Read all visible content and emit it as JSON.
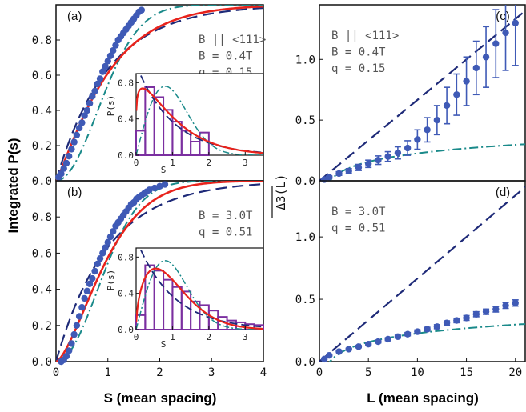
{
  "figure": {
    "xlabel_left": "S (mean spacing)",
    "ylabel_left": "Integrated P(s)",
    "xlabel_right": "L (mean spacing)",
    "ylabel_right": "Δ3(L)",
    "inset_xlabel": "S",
    "inset_ylabel": "P(s)"
  },
  "colors": {
    "data_points": "#3f5ab6",
    "poisson_dashed": "#1e2a78",
    "goe_dashdot": "#1a8a8a",
    "fit_red": "#e8231c",
    "histogram": "#7b2fa0"
  },
  "chart_data": [
    {
      "type": "line",
      "panel": "a",
      "label": "(a)",
      "annotations": [
        "B || <111>",
        "B = 0.4T",
        "q = 0.15"
      ],
      "xlim": [
        0,
        4
      ],
      "ylim": [
        0,
        1.0
      ],
      "xticks": [
        "0",
        "1",
        "2",
        "3",
        "4"
      ],
      "yticks": [
        "0.0",
        "0.2",
        "0.4",
        "0.6",
        "0.8"
      ],
      "points": [
        [
          0.05,
          0.02
        ],
        [
          0.1,
          0.04
        ],
        [
          0.15,
          0.07
        ],
        [
          0.2,
          0.1
        ],
        [
          0.25,
          0.14
        ],
        [
          0.3,
          0.18
        ],
        [
          0.35,
          0.22
        ],
        [
          0.4,
          0.26
        ],
        [
          0.45,
          0.3
        ],
        [
          0.5,
          0.33
        ],
        [
          0.55,
          0.37
        ],
        [
          0.6,
          0.4
        ],
        [
          0.65,
          0.44
        ],
        [
          0.7,
          0.48
        ],
        [
          0.75,
          0.51
        ],
        [
          0.8,
          0.55
        ],
        [
          0.85,
          0.58
        ],
        [
          0.9,
          0.62
        ],
        [
          0.95,
          0.65
        ],
        [
          1.0,
          0.68
        ],
        [
          1.05,
          0.71
        ],
        [
          1.1,
          0.74
        ],
        [
          1.15,
          0.77
        ],
        [
          1.2,
          0.8
        ],
        [
          1.25,
          0.82
        ],
        [
          1.3,
          0.84
        ],
        [
          1.35,
          0.86
        ],
        [
          1.4,
          0.88
        ],
        [
          1.45,
          0.9
        ],
        [
          1.5,
          0.92
        ],
        [
          1.55,
          0.94
        ],
        [
          1.6,
          0.96
        ],
        [
          1.65,
          0.97
        ]
      ],
      "q": 0.15,
      "inset": {
        "xlim": [
          0,
          3.5
        ],
        "ylim": [
          0,
          0.9
        ],
        "xticks": [
          "0",
          "1",
          "2",
          "3"
        ],
        "yticks": [
          "0.0",
          "0.4",
          "0.8"
        ],
        "bin_width": 0.25,
        "bars": [
          0.27,
          0.75,
          0.64,
          0.5,
          0.37,
          0.27,
          0.15,
          0.25
        ]
      }
    },
    {
      "type": "line",
      "panel": "b",
      "label": "(b)",
      "annotations": [
        "B = 3.0T",
        "q = 0.51"
      ],
      "xlim": [
        0,
        4
      ],
      "ylim": [
        0,
        1.0
      ],
      "xticks": [
        "0",
        "1",
        "2",
        "3",
        "4"
      ],
      "yticks": [
        "0.0",
        "0.2",
        "0.4",
        "0.6",
        "0.8"
      ],
      "points": [
        [
          0.1,
          0.0
        ],
        [
          0.15,
          0.01
        ],
        [
          0.2,
          0.03
        ],
        [
          0.25,
          0.06
        ],
        [
          0.3,
          0.1
        ],
        [
          0.35,
          0.15
        ],
        [
          0.4,
          0.2
        ],
        [
          0.45,
          0.25
        ],
        [
          0.5,
          0.3
        ],
        [
          0.55,
          0.35
        ],
        [
          0.6,
          0.39
        ],
        [
          0.65,
          0.43
        ],
        [
          0.7,
          0.46
        ],
        [
          0.75,
          0.5
        ],
        [
          0.8,
          0.54
        ],
        [
          0.85,
          0.57
        ],
        [
          0.9,
          0.6
        ],
        [
          0.95,
          0.63
        ],
        [
          1.0,
          0.66
        ],
        [
          1.05,
          0.69
        ],
        [
          1.1,
          0.72
        ],
        [
          1.15,
          0.75
        ],
        [
          1.2,
          0.77
        ],
        [
          1.25,
          0.79
        ],
        [
          1.3,
          0.81
        ],
        [
          1.35,
          0.83
        ],
        [
          1.4,
          0.85
        ],
        [
          1.45,
          0.87
        ],
        [
          1.5,
          0.88
        ],
        [
          1.55,
          0.9
        ],
        [
          1.6,
          0.91
        ],
        [
          1.65,
          0.92
        ],
        [
          1.7,
          0.93
        ],
        [
          1.75,
          0.94
        ],
        [
          1.8,
          0.95
        ],
        [
          1.9,
          0.96
        ],
        [
          2.0,
          0.97
        ],
        [
          2.1,
          0.98
        ]
      ],
      "q": 0.51,
      "inset": {
        "xlim": [
          0,
          3.5
        ],
        "ylim": [
          0,
          0.9
        ],
        "xticks": [
          "0",
          "1",
          "2",
          "3"
        ],
        "yticks": [
          "0.0",
          "0.4",
          "0.8"
        ],
        "bin_width": 0.25,
        "bars": [
          0.16,
          0.71,
          0.65,
          0.55,
          0.47,
          0.42,
          0.31,
          0.27,
          0.21,
          0.14,
          0.1,
          0.08,
          0.06,
          0.05
        ]
      }
    },
    {
      "type": "scatter",
      "panel": "c",
      "label": "(c)",
      "annotations": [
        "B || <111>",
        "B = 0.4T",
        "q = 0.15"
      ],
      "xlim": [
        0,
        21
      ],
      "ylim": [
        0,
        1.45
      ],
      "xticks": [
        "0",
        "5",
        "10",
        "15",
        "20"
      ],
      "yticks": [
        "0.0",
        "0.5",
        "1.0"
      ],
      "x": [
        0.5,
        1,
        2,
        3,
        4,
        5,
        6,
        7,
        8,
        9,
        10,
        11,
        12,
        13,
        14,
        15,
        16,
        17,
        18,
        19,
        20
      ],
      "y": [
        0.01,
        0.03,
        0.06,
        0.08,
        0.11,
        0.14,
        0.17,
        0.2,
        0.23,
        0.27,
        0.34,
        0.42,
        0.5,
        0.62,
        0.71,
        0.82,
        0.93,
        1.02,
        1.13,
        1.22,
        1.3
      ],
      "yerr": [
        0.005,
        0.01,
        0.015,
        0.02,
        0.025,
        0.03,
        0.035,
        0.04,
        0.05,
        0.06,
        0.08,
        0.1,
        0.12,
        0.15,
        0.17,
        0.2,
        0.22,
        0.25,
        0.28,
        0.31,
        0.35
      ]
    },
    {
      "type": "scatter",
      "panel": "d",
      "label": "(d)",
      "annotations": [
        "B = 3.0T",
        "q = 0.51"
      ],
      "xlim": [
        0,
        21
      ],
      "ylim": [
        0,
        1.45
      ],
      "xticks": [
        "0",
        "5",
        "10",
        "15",
        "20"
      ],
      "yticks": [
        "0.0",
        "0.5",
        "1.0"
      ],
      "x": [
        0.5,
        1,
        2,
        3,
        4,
        5,
        6,
        7,
        8,
        9,
        10,
        11,
        12,
        13,
        14,
        15,
        16,
        17,
        18,
        19,
        20
      ],
      "y": [
        0.02,
        0.05,
        0.08,
        0.1,
        0.12,
        0.14,
        0.16,
        0.18,
        0.2,
        0.22,
        0.24,
        0.26,
        0.28,
        0.31,
        0.33,
        0.35,
        0.38,
        0.4,
        0.42,
        0.45,
        0.47
      ],
      "yerr": [
        0.004,
        0.005,
        0.006,
        0.007,
        0.008,
        0.009,
        0.01,
        0.011,
        0.012,
        0.013,
        0.014,
        0.015,
        0.016,
        0.017,
        0.018,
        0.019,
        0.02,
        0.021,
        0.022,
        0.023,
        0.025
      ]
    }
  ]
}
